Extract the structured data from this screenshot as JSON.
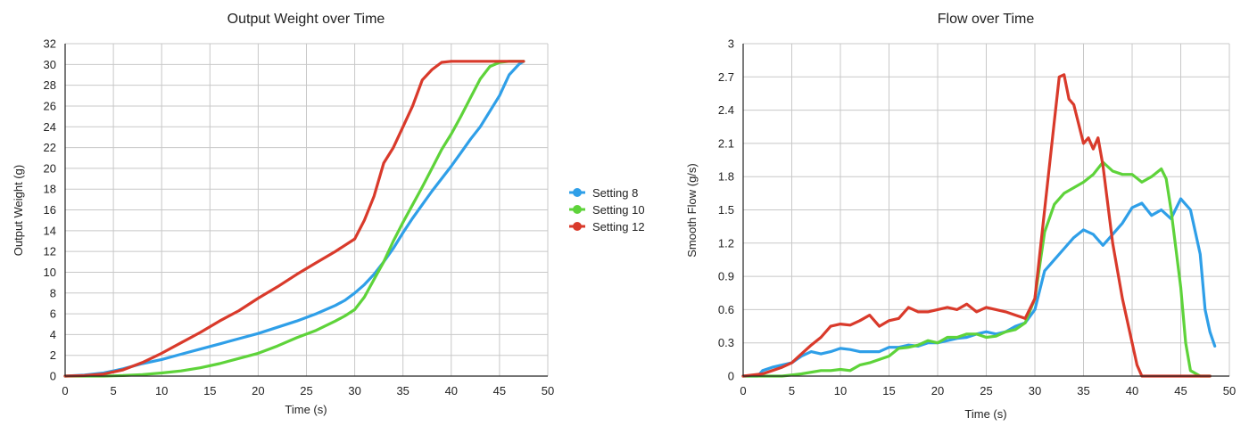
{
  "chart_data": [
    {
      "type": "line",
      "title": "Output Weight over Time",
      "xlabel": "Time (s)",
      "ylabel": "Output Weight (g)",
      "xlim": [
        0,
        50
      ],
      "ylim": [
        0,
        32
      ],
      "xticks": [
        0,
        5,
        10,
        15,
        20,
        25,
        30,
        35,
        40,
        45,
        50
      ],
      "yticks": [
        0,
        2,
        4,
        6,
        8,
        10,
        12,
        14,
        16,
        18,
        20,
        22,
        24,
        26,
        28,
        30,
        32
      ],
      "grid": true,
      "series": [
        {
          "name": "Setting 8",
          "color": "#2F9FE8",
          "x": [
            0,
            2,
            4,
            5,
            6,
            8,
            10,
            12,
            14,
            16,
            18,
            20,
            22,
            24,
            26,
            28,
            29,
            30,
            31,
            32,
            33,
            34,
            35,
            36,
            37,
            38,
            39,
            40,
            41,
            42,
            43,
            44,
            45,
            46,
            47,
            47.5
          ],
          "y": [
            0,
            0.1,
            0.3,
            0.5,
            0.7,
            1.2,
            1.6,
            2.1,
            2.6,
            3.1,
            3.6,
            4.1,
            4.7,
            5.3,
            6.0,
            6.8,
            7.3,
            8.0,
            8.8,
            9.8,
            11.0,
            12.3,
            13.8,
            15.2,
            16.5,
            17.8,
            19.0,
            20.2,
            21.5,
            22.8,
            24.0,
            25.5,
            27.0,
            29.0,
            30.0,
            30.3
          ]
        },
        {
          "name": "Setting 10",
          "color": "#5ED33A",
          "x": [
            0,
            4,
            6,
            8,
            10,
            12,
            14,
            16,
            18,
            20,
            22,
            24,
            26,
            28,
            29,
            30,
            31,
            32,
            33,
            34,
            35,
            36,
            37,
            38,
            39,
            40,
            41,
            42,
            43,
            44,
            45,
            46,
            47.5
          ],
          "y": [
            0,
            0,
            0.05,
            0.15,
            0.3,
            0.5,
            0.8,
            1.2,
            1.7,
            2.2,
            2.9,
            3.7,
            4.4,
            5.3,
            5.8,
            6.4,
            7.6,
            9.3,
            11.0,
            13.0,
            14.8,
            16.5,
            18.2,
            20.0,
            21.8,
            23.3,
            25.0,
            26.8,
            28.6,
            29.8,
            30.2,
            30.3,
            30.3
          ]
        },
        {
          "name": "Setting 12",
          "color": "#D93A2B",
          "x": [
            0,
            2,
            4,
            6,
            8,
            10,
            12,
            14,
            16,
            18,
            20,
            22,
            24,
            26,
            28,
            30,
            31,
            32,
            33,
            34,
            35,
            36,
            37,
            38,
            39,
            40,
            42,
            44,
            46,
            47.5
          ],
          "y": [
            0,
            0.05,
            0.2,
            0.6,
            1.3,
            2.2,
            3.2,
            4.2,
            5.3,
            6.3,
            7.5,
            8.6,
            9.8,
            10.9,
            12.0,
            13.2,
            15.0,
            17.3,
            20.5,
            22.0,
            24.0,
            26.0,
            28.5,
            29.5,
            30.2,
            30.3,
            30.3,
            30.3,
            30.3,
            30.3
          ]
        }
      ],
      "legend": {
        "position": "right",
        "entries": [
          "Setting 8",
          "Setting 10",
          "Setting 12"
        ]
      }
    },
    {
      "type": "line",
      "title": "Flow over Time",
      "xlabel": "Time (s)",
      "ylabel": "Smooth Flow (g/s)",
      "xlim": [
        0,
        50
      ],
      "ylim": [
        0,
        3
      ],
      "xticks": [
        0,
        5,
        10,
        15,
        20,
        25,
        30,
        35,
        40,
        45,
        50
      ],
      "yticks": [
        0,
        0.3,
        0.6,
        0.9,
        1.2,
        1.5,
        1.8,
        2.1,
        2.4,
        2.7,
        3
      ],
      "grid": true,
      "series": [
        {
          "name": "Setting 8",
          "color": "#2F9FE8",
          "x": [
            0,
            1.5,
            2,
            3,
            4,
            5,
            6,
            7,
            8,
            9,
            10,
            11,
            12,
            13,
            14,
            15,
            16,
            17,
            18,
            19,
            20,
            21,
            22,
            23,
            24,
            25,
            26,
            27,
            28,
            29,
            30,
            31,
            32,
            33,
            34,
            35,
            36,
            37,
            38,
            39,
            40,
            41,
            42,
            43,
            44,
            45,
            46,
            47,
            47.5,
            48,
            48.5
          ],
          "y": [
            0,
            0,
            0.05,
            0.08,
            0.1,
            0.12,
            0.18,
            0.22,
            0.2,
            0.22,
            0.25,
            0.24,
            0.22,
            0.22,
            0.22,
            0.26,
            0.26,
            0.28,
            0.27,
            0.3,
            0.3,
            0.32,
            0.34,
            0.35,
            0.38,
            0.4,
            0.38,
            0.4,
            0.45,
            0.48,
            0.6,
            0.95,
            1.05,
            1.15,
            1.25,
            1.32,
            1.28,
            1.18,
            1.28,
            1.38,
            1.52,
            1.56,
            1.45,
            1.5,
            1.42,
            1.6,
            1.5,
            1.1,
            0.6,
            0.4,
            0.27
          ]
        },
        {
          "name": "Setting 10",
          "color": "#5ED33A",
          "x": [
            0,
            2,
            4,
            6,
            8,
            9,
            10,
            11,
            12,
            13,
            14,
            15,
            16,
            17,
            18,
            19,
            20,
            21,
            22,
            23,
            24,
            25,
            26,
            27,
            28,
            29,
            30,
            31,
            32,
            33,
            34,
            35,
            36,
            37,
            38,
            39,
            40,
            41,
            42,
            43,
            43.5,
            44,
            45,
            45.5,
            46,
            47,
            48
          ],
          "y": [
            0,
            0,
            0,
            0.02,
            0.05,
            0.05,
            0.06,
            0.05,
            0.1,
            0.12,
            0.15,
            0.18,
            0.25,
            0.26,
            0.28,
            0.32,
            0.3,
            0.35,
            0.35,
            0.38,
            0.38,
            0.35,
            0.36,
            0.4,
            0.42,
            0.48,
            0.7,
            1.3,
            1.55,
            1.65,
            1.7,
            1.75,
            1.82,
            1.93,
            1.85,
            1.82,
            1.82,
            1.75,
            1.8,
            1.87,
            1.78,
            1.5,
            0.8,
            0.3,
            0.05,
            0,
            0
          ]
        },
        {
          "name": "Setting 12",
          "color": "#D93A2B",
          "x": [
            0,
            2,
            3,
            4,
            5,
            6,
            7,
            8,
            9,
            10,
            11,
            12,
            13,
            14,
            15,
            16,
            17,
            18,
            19,
            20,
            21,
            22,
            23,
            24,
            25,
            26,
            27,
            28,
            29,
            30,
            31,
            32,
            32.5,
            33,
            33.5,
            34,
            35,
            35.5,
            36,
            36.5,
            37,
            38,
            39,
            40,
            40.5,
            41,
            42,
            44,
            46,
            48
          ],
          "y": [
            0,
            0.02,
            0.05,
            0.08,
            0.12,
            0.2,
            0.28,
            0.35,
            0.45,
            0.47,
            0.46,
            0.5,
            0.55,
            0.45,
            0.5,
            0.52,
            0.62,
            0.58,
            0.58,
            0.6,
            0.62,
            0.6,
            0.65,
            0.58,
            0.62,
            0.6,
            0.58,
            0.55,
            0.52,
            0.7,
            1.5,
            2.3,
            2.7,
            2.72,
            2.5,
            2.45,
            2.1,
            2.15,
            2.05,
            2.15,
            1.9,
            1.2,
            0.7,
            0.3,
            0.1,
            0,
            0,
            0,
            0,
            0
          ]
        }
      ]
    }
  ]
}
